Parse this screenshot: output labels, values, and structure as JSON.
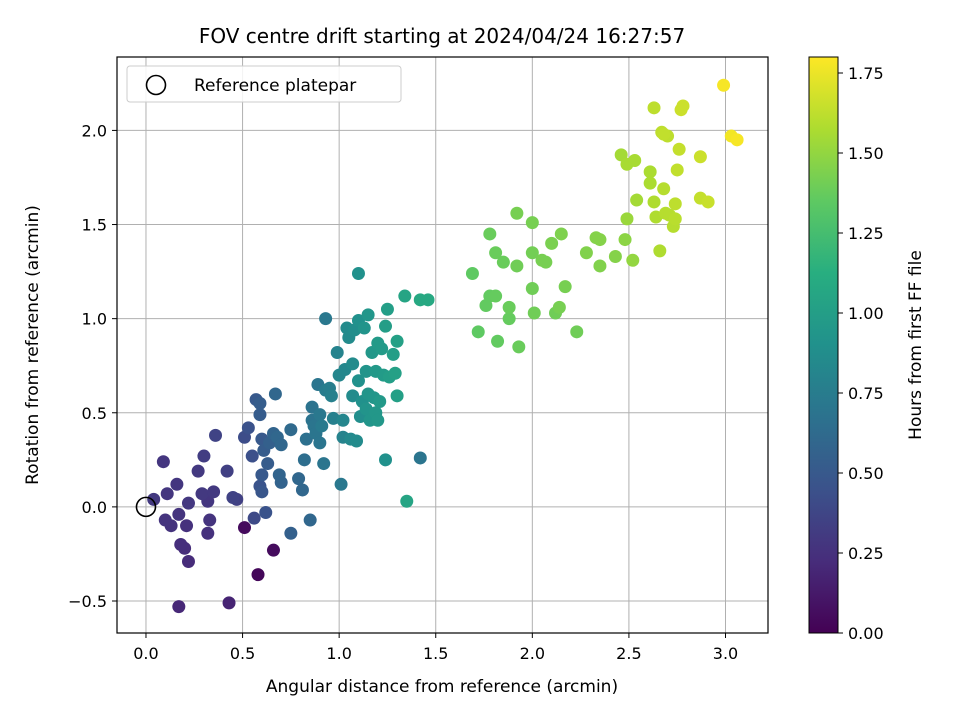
{
  "chart_data": {
    "type": "scatter",
    "title": "FOV centre drift starting at 2024/04/24 16:27:57",
    "xlabel": "Angular distance from reference (arcmin)",
    "ylabel": "Rotation from reference (arcmin)",
    "xlim": [
      -0.15,
      3.22
    ],
    "ylim": [
      -0.67,
      2.39
    ],
    "xticks": [
      0.0,
      0.5,
      1.0,
      1.5,
      2.0,
      2.5,
      3.0
    ],
    "xtick_labels": [
      "0.0",
      "0.5",
      "1.0",
      "1.5",
      "2.0",
      "2.5",
      "3.0"
    ],
    "yticks": [
      -0.5,
      0.0,
      0.5,
      1.0,
      1.5,
      2.0
    ],
    "ytick_labels": [
      "−0.5",
      "0.0",
      "0.5",
      "1.0",
      "1.5",
      "2.0"
    ],
    "grid": true,
    "legend": {
      "position": "upper-left",
      "label": "Reference platepar",
      "marker": "open-circle"
    },
    "reference_point": {
      "x": 0.0,
      "y": 0.0
    },
    "colorbar": {
      "label": "Hours from first FF file",
      "colormap": "viridis",
      "range": [
        0.0,
        1.8
      ],
      "ticks": [
        0.0,
        0.25,
        0.5,
        0.75,
        1.0,
        1.25,
        1.5,
        1.75
      ],
      "tick_labels": [
        "0.00",
        "0.25",
        "0.50",
        "0.75",
        "1.00",
        "1.25",
        "1.50",
        "1.75"
      ]
    },
    "points": [
      [
        0.04,
        0.04,
        0.3
      ],
      [
        0.09,
        0.24,
        0.28
      ],
      [
        0.11,
        0.07,
        0.28
      ],
      [
        0.13,
        -0.1,
        0.26
      ],
      [
        0.1,
        -0.07,
        0.27
      ],
      [
        0.16,
        0.12,
        0.28
      ],
      [
        0.17,
        -0.04,
        0.27
      ],
      [
        0.18,
        -0.2,
        0.24
      ],
      [
        0.2,
        -0.22,
        0.23
      ],
      [
        0.21,
        -0.1,
        0.25
      ],
      [
        0.22,
        -0.29,
        0.22
      ],
      [
        0.22,
        0.02,
        0.29
      ],
      [
        0.17,
        -0.53,
        0.2
      ],
      [
        0.27,
        0.19,
        0.3
      ],
      [
        0.29,
        0.07,
        0.3
      ],
      [
        0.3,
        0.27,
        0.32
      ],
      [
        0.32,
        0.03,
        0.28
      ],
      [
        0.32,
        -0.14,
        0.25
      ],
      [
        0.33,
        -0.07,
        0.27
      ],
      [
        0.35,
        0.08,
        0.3
      ],
      [
        0.36,
        0.38,
        0.36
      ],
      [
        0.42,
        0.19,
        0.34
      ],
      [
        0.45,
        0.05,
        0.35
      ],
      [
        0.47,
        0.04,
        0.34
      ],
      [
        0.43,
        -0.51,
        0.18
      ],
      [
        0.51,
        -0.11,
        0.05
      ],
      [
        0.51,
        0.37,
        0.42
      ],
      [
        0.53,
        0.42,
        0.45
      ],
      [
        0.55,
        0.27,
        0.44
      ],
      [
        0.56,
        -0.06,
        0.4
      ],
      [
        0.57,
        0.57,
        0.5
      ],
      [
        0.58,
        -0.36,
        0.03
      ],
      [
        0.59,
        0.11,
        0.46
      ],
      [
        0.59,
        0.49,
        0.52
      ],
      [
        0.59,
        0.55,
        0.53
      ],
      [
        0.6,
        0.36,
        0.5
      ],
      [
        0.6,
        0.17,
        0.5
      ],
      [
        0.6,
        0.08,
        0.48
      ],
      [
        0.61,
        0.3,
        0.52
      ],
      [
        0.62,
        -0.03,
        0.46
      ],
      [
        0.63,
        0.23,
        0.52
      ],
      [
        0.64,
        0.34,
        0.55
      ],
      [
        0.66,
        0.39,
        0.58
      ],
      [
        0.67,
        0.6,
        0.6
      ],
      [
        0.68,
        0.37,
        0.6
      ],
      [
        0.69,
        0.17,
        0.58
      ],
      [
        0.7,
        0.33,
        0.6
      ],
      [
        0.7,
        0.13,
        0.57
      ],
      [
        0.66,
        -0.23,
        0.05
      ],
      [
        0.75,
        0.41,
        0.62
      ],
      [
        0.75,
        -0.14,
        0.55
      ],
      [
        0.79,
        0.15,
        0.6
      ],
      [
        0.81,
        0.09,
        0.6
      ],
      [
        0.82,
        0.25,
        0.65
      ],
      [
        0.83,
        0.36,
        0.66
      ],
      [
        0.85,
        -0.07,
        0.6
      ],
      [
        0.86,
        0.53,
        0.68
      ],
      [
        0.86,
        0.46,
        0.68
      ],
      [
        0.87,
        0.43,
        0.7
      ],
      [
        0.88,
        0.39,
        0.7
      ],
      [
        0.89,
        0.65,
        0.7
      ],
      [
        0.9,
        0.34,
        0.7
      ],
      [
        0.9,
        0.49,
        0.72
      ],
      [
        0.91,
        0.43,
        0.73
      ],
      [
        0.92,
        0.23,
        0.7
      ],
      [
        0.93,
        1.0,
        0.72
      ],
      [
        0.93,
        0.62,
        0.75
      ],
      [
        0.95,
        0.63,
        0.76
      ],
      [
        0.96,
        0.59,
        0.78
      ],
      [
        0.97,
        0.47,
        0.78
      ],
      [
        0.99,
        0.82,
        0.8
      ],
      [
        1.0,
        0.7,
        0.82
      ],
      [
        1.01,
        0.12,
        0.72
      ],
      [
        1.02,
        0.37,
        0.8
      ],
      [
        1.02,
        0.46,
        0.82
      ],
      [
        1.03,
        0.73,
        0.83
      ],
      [
        1.04,
        0.95,
        0.86
      ],
      [
        1.05,
        0.9,
        0.86
      ],
      [
        1.06,
        0.36,
        0.84
      ],
      [
        1.07,
        0.59,
        0.86
      ],
      [
        1.07,
        0.76,
        0.86
      ],
      [
        1.08,
        0.94,
        0.88
      ],
      [
        1.09,
        0.35,
        0.86
      ],
      [
        1.1,
        1.24,
        0.9
      ],
      [
        1.1,
        0.67,
        0.9
      ],
      [
        1.1,
        0.99,
        0.9
      ],
      [
        1.11,
        0.48,
        0.88
      ],
      [
        1.12,
        0.56,
        0.9
      ],
      [
        1.13,
        0.95,
        0.92
      ],
      [
        1.14,
        0.72,
        0.92
      ],
      [
        1.14,
        0.52,
        0.92
      ],
      [
        1.15,
        1.02,
        0.94
      ],
      [
        1.15,
        0.6,
        0.93
      ],
      [
        1.16,
        0.46,
        0.93
      ],
      [
        1.17,
        0.82,
        0.95
      ],
      [
        1.18,
        0.58,
        0.94
      ],
      [
        1.19,
        0.5,
        0.95
      ],
      [
        1.19,
        0.72,
        0.96
      ],
      [
        1.2,
        0.46,
        0.95
      ],
      [
        1.2,
        0.87,
        0.97
      ],
      [
        1.21,
        0.56,
        0.96
      ],
      [
        1.22,
        0.84,
        0.97
      ],
      [
        1.23,
        0.7,
        0.98
      ],
      [
        1.24,
        0.25,
        0.9
      ],
      [
        1.24,
        0.96,
        0.99
      ],
      [
        1.25,
        1.05,
        1.0
      ],
      [
        1.26,
        0.69,
        1.0
      ],
      [
        1.28,
        0.81,
        1.0
      ],
      [
        1.29,
        0.71,
        1.02
      ],
      [
        1.3,
        0.59,
        1.01
      ],
      [
        1.3,
        0.88,
        1.02
      ],
      [
        1.34,
        1.12,
        1.05
      ],
      [
        1.35,
        0.03,
        1.05
      ],
      [
        1.42,
        1.1,
        1.08
      ],
      [
        1.42,
        0.26,
        0.7
      ],
      [
        1.46,
        1.1,
        1.08
      ],
      [
        1.69,
        1.24,
        1.35
      ],
      [
        1.72,
        0.93,
        1.35
      ],
      [
        1.76,
        1.07,
        1.36
      ],
      [
        1.78,
        1.45,
        1.38
      ],
      [
        1.78,
        1.12,
        1.36
      ],
      [
        1.81,
        1.35,
        1.38
      ],
      [
        1.81,
        1.12,
        1.37
      ],
      [
        1.82,
        0.88,
        1.36
      ],
      [
        1.85,
        1.3,
        1.38
      ],
      [
        1.88,
        1.0,
        1.37
      ],
      [
        1.88,
        1.06,
        1.38
      ],
      [
        1.92,
        1.28,
        1.4
      ],
      [
        1.92,
        1.56,
        1.42
      ],
      [
        1.93,
        0.85,
        1.38
      ],
      [
        2.0,
        1.16,
        1.4
      ],
      [
        2.0,
        1.51,
        1.42
      ],
      [
        2.0,
        1.35,
        1.41
      ],
      [
        2.01,
        1.03,
        1.4
      ],
      [
        2.05,
        1.31,
        1.42
      ],
      [
        2.07,
        1.3,
        1.42
      ],
      [
        2.1,
        1.4,
        1.43
      ],
      [
        2.12,
        1.03,
        1.4
      ],
      [
        2.14,
        1.06,
        1.42
      ],
      [
        2.15,
        1.45,
        1.44
      ],
      [
        2.17,
        1.17,
        1.42
      ],
      [
        2.23,
        0.93,
        1.4
      ],
      [
        2.28,
        1.35,
        1.45
      ],
      [
        2.33,
        1.43,
        1.46
      ],
      [
        2.35,
        1.28,
        1.45
      ],
      [
        2.35,
        1.42,
        1.46
      ],
      [
        2.43,
        1.33,
        1.46
      ],
      [
        2.46,
        1.87,
        1.55
      ],
      [
        2.48,
        1.42,
        1.48
      ],
      [
        2.49,
        1.53,
        1.52
      ],
      [
        2.49,
        1.82,
        1.56
      ],
      [
        2.52,
        1.31,
        1.5
      ],
      [
        2.53,
        1.84,
        1.56
      ],
      [
        2.54,
        1.63,
        1.55
      ],
      [
        2.61,
        1.78,
        1.57
      ],
      [
        2.61,
        1.72,
        1.57
      ],
      [
        2.63,
        2.12,
        1.62
      ],
      [
        2.63,
        1.62,
        1.58
      ],
      [
        2.64,
        1.54,
        1.58
      ],
      [
        2.66,
        1.36,
        1.58
      ],
      [
        2.67,
        1.99,
        1.62
      ],
      [
        2.68,
        1.69,
        1.6
      ],
      [
        2.68,
        1.98,
        1.63
      ],
      [
        2.69,
        1.56,
        1.6
      ],
      [
        2.7,
        1.97,
        1.62
      ],
      [
        2.71,
        1.55,
        1.6
      ],
      [
        2.73,
        1.49,
        1.6
      ],
      [
        2.74,
        1.61,
        1.62
      ],
      [
        2.74,
        1.53,
        1.61
      ],
      [
        2.75,
        1.79,
        1.63
      ],
      [
        2.76,
        1.9,
        1.64
      ],
      [
        2.77,
        2.11,
        1.66
      ],
      [
        2.78,
        2.13,
        1.66
      ],
      [
        2.87,
        1.86,
        1.66
      ],
      [
        2.87,
        1.64,
        1.64
      ],
      [
        2.91,
        1.62,
        1.65
      ],
      [
        2.99,
        2.24,
        1.78
      ],
      [
        3.03,
        1.97,
        1.77
      ],
      [
        3.06,
        1.95,
        1.78
      ]
    ]
  }
}
